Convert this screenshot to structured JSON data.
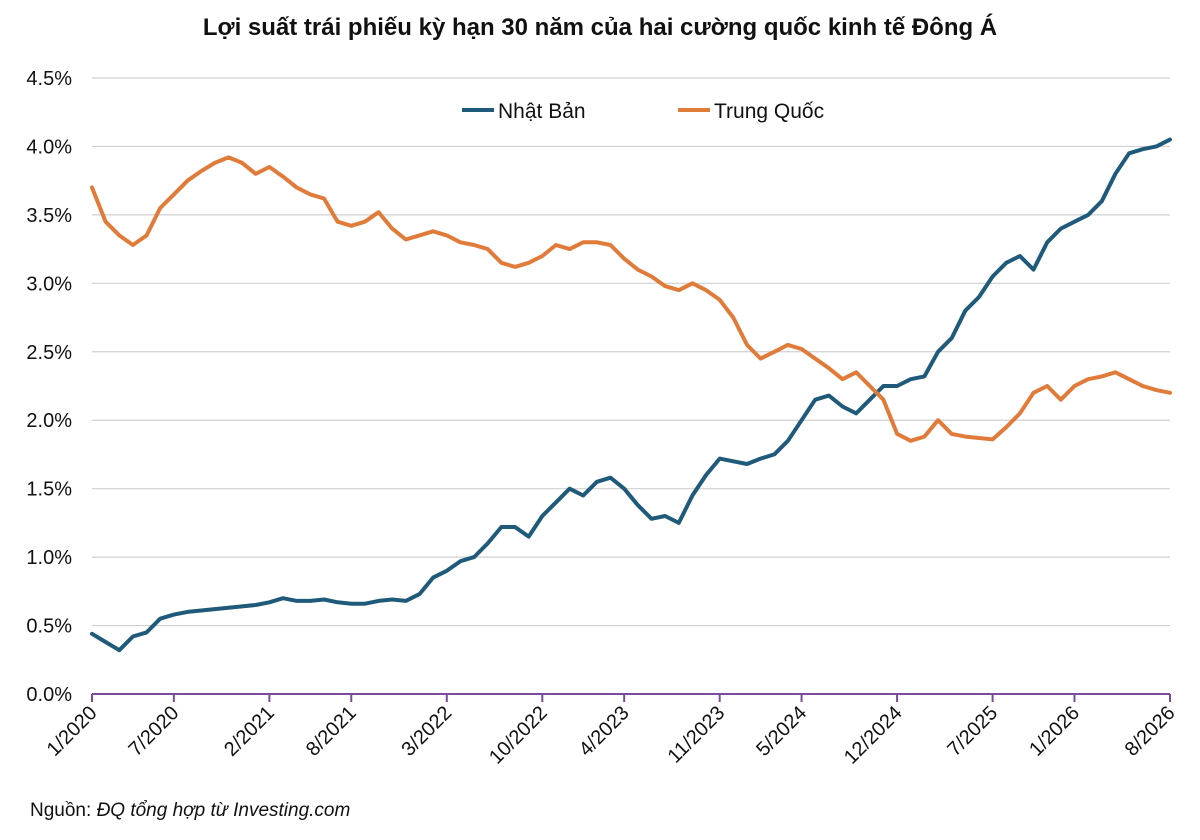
{
  "chart_data": {
    "type": "line",
    "title": "Lợi suất trái phiếu kỳ hạn 30 năm của hai cường quốc kinh tế Đông Á",
    "xlabel": "",
    "ylabel": "",
    "x_range": [
      "1/2020",
      "8/2026"
    ],
    "ylim": [
      0.0,
      4.5
    ],
    "y_ticks": [
      "0.0%",
      "0.5%",
      "1.0%",
      "1.5%",
      "2.0%",
      "2.5%",
      "3.0%",
      "3.5%",
      "4.0%",
      "4.5%"
    ],
    "y_tick_values": [
      0.0,
      0.5,
      1.0,
      1.5,
      2.0,
      2.5,
      3.0,
      3.5,
      4.0,
      4.5
    ],
    "x_ticks": [
      "1/2020",
      "7/2020",
      "2/2021",
      "8/2021",
      "3/2022",
      "10/2022",
      "4/2023",
      "11/2023",
      "5/2024",
      "12/2024",
      "7/2025",
      "1/2026",
      "8/2026"
    ],
    "grid": true,
    "legend": "top-center",
    "series": [
      {
        "name": "Nhật Bản",
        "color": "#1f5a7a",
        "points": [
          [
            "2020-01",
            0.44
          ],
          [
            "2020-02",
            0.38
          ],
          [
            "2020-03",
            0.32
          ],
          [
            "2020-04",
            0.42
          ],
          [
            "2020-05",
            0.45
          ],
          [
            "2020-06",
            0.55
          ],
          [
            "2020-07",
            0.58
          ],
          [
            "2020-08",
            0.6
          ],
          [
            "2020-09",
            0.61
          ],
          [
            "2020-10",
            0.62
          ],
          [
            "2020-11",
            0.63
          ],
          [
            "2020-12",
            0.64
          ],
          [
            "2021-01",
            0.65
          ],
          [
            "2021-02",
            0.67
          ],
          [
            "2021-03",
            0.7
          ],
          [
            "2021-04",
            0.68
          ],
          [
            "2021-05",
            0.68
          ],
          [
            "2021-06",
            0.69
          ],
          [
            "2021-07",
            0.67
          ],
          [
            "2021-08",
            0.66
          ],
          [
            "2021-09",
            0.66
          ],
          [
            "2021-10",
            0.68
          ],
          [
            "2021-11",
            0.69
          ],
          [
            "2021-12",
            0.68
          ],
          [
            "2022-01",
            0.73
          ],
          [
            "2022-02",
            0.85
          ],
          [
            "2022-03",
            0.9
          ],
          [
            "2022-04",
            0.97
          ],
          [
            "2022-05",
            1.0
          ],
          [
            "2022-06",
            1.1
          ],
          [
            "2022-07",
            1.22
          ],
          [
            "2022-08",
            1.22
          ],
          [
            "2022-09",
            1.15
          ],
          [
            "2022-10",
            1.3
          ],
          [
            "2022-11",
            1.4
          ],
          [
            "2022-12",
            1.5
          ],
          [
            "2023-01",
            1.45
          ],
          [
            "2023-02",
            1.55
          ],
          [
            "2023-03",
            1.58
          ],
          [
            "2023-04",
            1.5
          ],
          [
            "2023-05",
            1.38
          ],
          [
            "2023-06",
            1.28
          ],
          [
            "2023-07",
            1.3
          ],
          [
            "2023-08",
            1.25
          ],
          [
            "2023-09",
            1.45
          ],
          [
            "2023-10",
            1.6
          ],
          [
            "2023-11",
            1.72
          ],
          [
            "2023-12",
            1.7
          ],
          [
            "2024-01",
            1.68
          ],
          [
            "2024-02",
            1.72
          ],
          [
            "2024-03",
            1.75
          ],
          [
            "2024-04",
            1.85
          ],
          [
            "2024-05",
            2.0
          ],
          [
            "2024-06",
            2.15
          ],
          [
            "2024-07",
            2.18
          ],
          [
            "2024-08",
            2.1
          ],
          [
            "2024-09",
            2.05
          ],
          [
            "2024-10",
            2.15
          ],
          [
            "2024-11",
            2.25
          ],
          [
            "2024-12",
            2.25
          ],
          [
            "2025-01",
            2.3
          ],
          [
            "2025-02",
            2.32
          ],
          [
            "2025-03",
            2.5
          ],
          [
            "2025-04",
            2.6
          ],
          [
            "2025-05",
            2.8
          ],
          [
            "2025-06",
            2.9
          ],
          [
            "2025-07",
            3.05
          ],
          [
            "2025-08",
            3.15
          ],
          [
            "2025-09",
            3.2
          ],
          [
            "2025-10",
            3.1
          ],
          [
            "2025-11",
            3.3
          ],
          [
            "2025-12",
            3.4
          ],
          [
            "2026-01",
            3.45
          ],
          [
            "2026-02",
            3.5
          ],
          [
            "2026-03",
            3.6
          ],
          [
            "2026-04",
            3.8
          ],
          [
            "2026-05",
            3.95
          ],
          [
            "2026-06",
            3.98
          ],
          [
            "2026-07",
            4.0
          ],
          [
            "2026-08",
            4.05
          ]
        ]
      },
      {
        "name": "Trung Quốc",
        "color": "#e07b3a",
        "points": [
          [
            "2020-01",
            3.7
          ],
          [
            "2020-02",
            3.45
          ],
          [
            "2020-03",
            3.35
          ],
          [
            "2020-04",
            3.28
          ],
          [
            "2020-05",
            3.35
          ],
          [
            "2020-06",
            3.55
          ],
          [
            "2020-07",
            3.65
          ],
          [
            "2020-08",
            3.75
          ],
          [
            "2020-09",
            3.82
          ],
          [
            "2020-10",
            3.88
          ],
          [
            "2020-11",
            3.92
          ],
          [
            "2020-12",
            3.88
          ],
          [
            "2021-01",
            3.8
          ],
          [
            "2021-02",
            3.85
          ],
          [
            "2021-03",
            3.78
          ],
          [
            "2021-04",
            3.7
          ],
          [
            "2021-05",
            3.65
          ],
          [
            "2021-06",
            3.62
          ],
          [
            "2021-07",
            3.45
          ],
          [
            "2021-08",
            3.42
          ],
          [
            "2021-09",
            3.45
          ],
          [
            "2021-10",
            3.52
          ],
          [
            "2021-11",
            3.4
          ],
          [
            "2021-12",
            3.32
          ],
          [
            "2022-01",
            3.35
          ],
          [
            "2022-02",
            3.38
          ],
          [
            "2022-03",
            3.35
          ],
          [
            "2022-04",
            3.3
          ],
          [
            "2022-05",
            3.28
          ],
          [
            "2022-06",
            3.25
          ],
          [
            "2022-07",
            3.15
          ],
          [
            "2022-08",
            3.12
          ],
          [
            "2022-09",
            3.15
          ],
          [
            "2022-10",
            3.2
          ],
          [
            "2022-11",
            3.28
          ],
          [
            "2022-12",
            3.25
          ],
          [
            "2023-01",
            3.3
          ],
          [
            "2023-02",
            3.3
          ],
          [
            "2023-03",
            3.28
          ],
          [
            "2023-04",
            3.18
          ],
          [
            "2023-05",
            3.1
          ],
          [
            "2023-06",
            3.05
          ],
          [
            "2023-07",
            2.98
          ],
          [
            "2023-08",
            2.95
          ],
          [
            "2023-09",
            3.0
          ],
          [
            "2023-10",
            2.95
          ],
          [
            "2023-11",
            2.88
          ],
          [
            "2023-12",
            2.75
          ],
          [
            "2024-01",
            2.55
          ],
          [
            "2024-02",
            2.45
          ],
          [
            "2024-03",
            2.5
          ],
          [
            "2024-04",
            2.55
          ],
          [
            "2024-05",
            2.52
          ],
          [
            "2024-06",
            2.45
          ],
          [
            "2024-07",
            2.38
          ],
          [
            "2024-08",
            2.3
          ],
          [
            "2024-09",
            2.35
          ],
          [
            "2024-10",
            2.25
          ],
          [
            "2024-11",
            2.15
          ],
          [
            "2024-12",
            1.9
          ],
          [
            "2025-01",
            1.85
          ],
          [
            "2025-02",
            1.88
          ],
          [
            "2025-03",
            2.0
          ],
          [
            "2025-04",
            1.9
          ],
          [
            "2025-05",
            1.88
          ],
          [
            "2025-06",
            1.87
          ],
          [
            "2025-07",
            1.86
          ],
          [
            "2025-08",
            1.95
          ],
          [
            "2025-09",
            2.05
          ],
          [
            "2025-10",
            2.2
          ],
          [
            "2025-11",
            2.25
          ],
          [
            "2025-12",
            2.15
          ],
          [
            "2026-01",
            2.25
          ],
          [
            "2026-02",
            2.3
          ],
          [
            "2026-03",
            2.32
          ],
          [
            "2026-04",
            2.35
          ],
          [
            "2026-05",
            2.3
          ],
          [
            "2026-06",
            2.25
          ],
          [
            "2026-07",
            2.22
          ],
          [
            "2026-08",
            2.2
          ]
        ]
      }
    ]
  },
  "source": {
    "label": "Nguồn:",
    "detail": "ĐQ tổng hợp từ Investing.com"
  }
}
